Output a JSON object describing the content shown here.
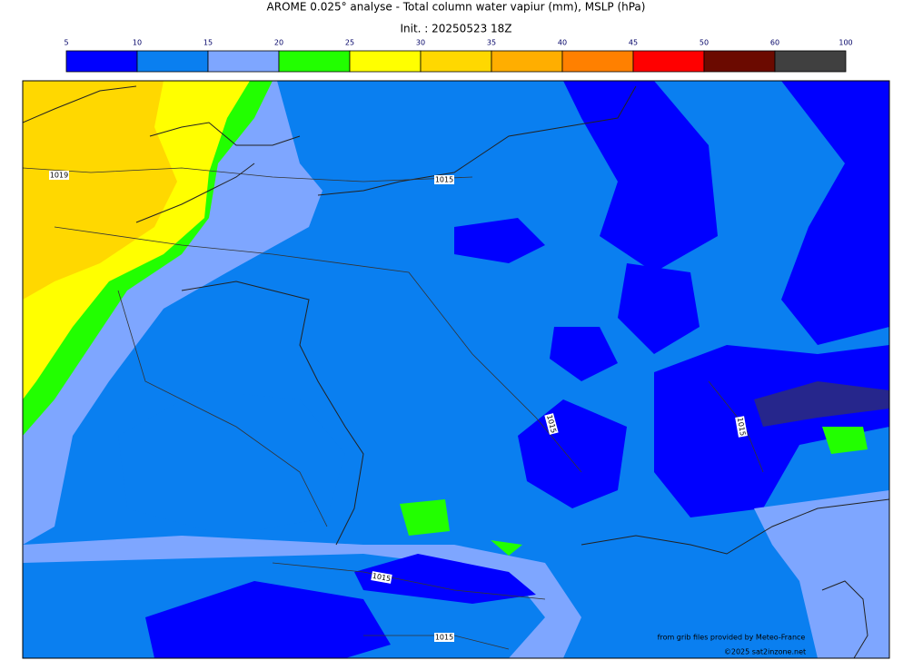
{
  "title": "AROME 0.025° analyse - Total column water vapiur (mm), MSLP (hPa)",
  "subtitle": "Init. : 20250523 18Z",
  "colorbar": {
    "ticks": [
      5,
      10,
      15,
      20,
      25,
      30,
      35,
      40,
      45,
      50,
      60,
      100
    ],
    "colors": [
      "#0000ff",
      "#0a7ff0",
      "#7ea6ff",
      "#22ff00",
      "#ffff00",
      "#ffd800",
      "#ffae00",
      "#ff8000",
      "#ff0000",
      "#6b0a00",
      "#404040"
    ]
  },
  "isobar_labels": [
    "1019",
    "1015",
    "1015",
    "1015",
    "1015",
    "1015"
  ],
  "credits": [
    "from grib files provided by Meteo-France",
    "©2025 sat2inzone.net"
  ]
}
